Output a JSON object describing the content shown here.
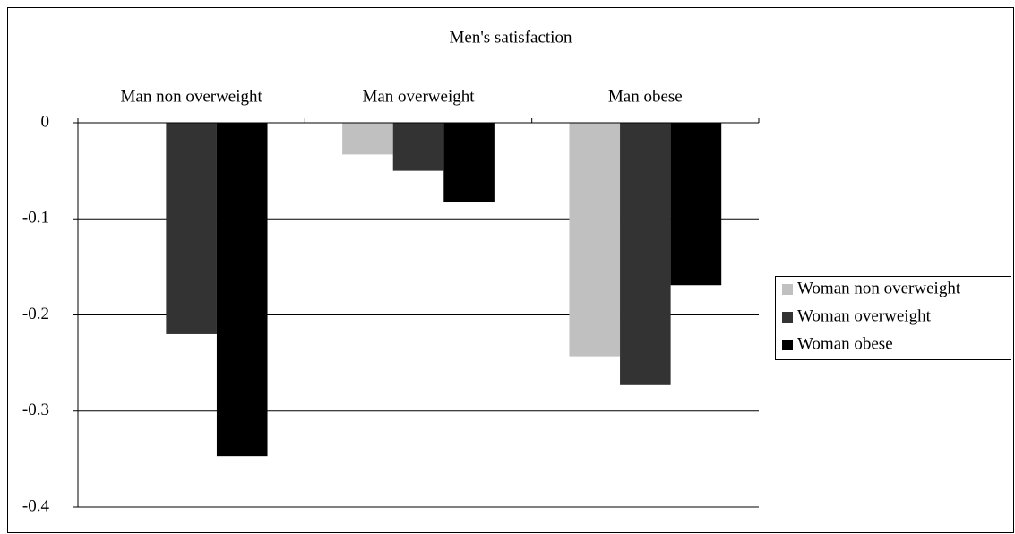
{
  "chart_data": {
    "type": "bar",
    "title": "Men's satisfaction",
    "categories": [
      "Man non overweight",
      "Man overweight",
      "Man obese"
    ],
    "series": [
      {
        "name": "Woman non overweight",
        "color": "#c0c0c0",
        "values": [
          0,
          -0.033,
          -0.243
        ]
      },
      {
        "name": "Woman overweight",
        "color": "#333333",
        "values": [
          -0.22,
          -0.05,
          -0.273
        ]
      },
      {
        "name": "Woman obese",
        "color": "#000000",
        "values": [
          -0.347,
          -0.083,
          -0.169
        ]
      }
    ],
    "ylim": [
      -0.4,
      0
    ],
    "yticks": [
      0,
      -0.1,
      -0.2,
      -0.3,
      -0.4
    ],
    "grid": true,
    "legend": "right"
  }
}
